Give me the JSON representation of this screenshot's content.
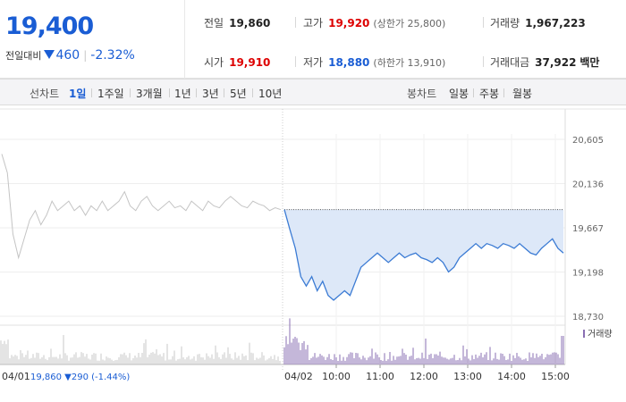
{
  "summary": {
    "price": "19,400",
    "change_label": "전일대비",
    "change_amount": "460",
    "change_pct": "-2.32%",
    "prev_close": {
      "label": "전일",
      "value": "19,860"
    },
    "high": {
      "label": "고가",
      "value": "19,920",
      "sub": "(상한가 25,800)"
    },
    "volume": {
      "label": "거래량",
      "value": "1,967,223"
    },
    "open": {
      "label": "시가",
      "value": "19,910"
    },
    "low": {
      "label": "저가",
      "value": "18,880",
      "sub": "(하한가 13,910)"
    },
    "turnover": {
      "label": "거래대금",
      "value": "37,922",
      "unit": "백만"
    }
  },
  "tabs": {
    "line_label": "선차트",
    "line_tabs": [
      "1일",
      "1주일",
      "3개월",
      "1년",
      "3년",
      "5년",
      "10년"
    ],
    "line_active": 0,
    "candle_label": "봉차트",
    "candle_tabs": [
      "일봉",
      "주봉",
      "월봉"
    ]
  },
  "colors": {
    "up": "#dd0000",
    "down": "#1a5dd4",
    "volume": "#8a6fb3",
    "prev_day": "#c4c4c4",
    "fill": "#dde8f8"
  },
  "chart_data": {
    "type": "line",
    "y_ticks": [
      "20,605",
      "20,136",
      "19,667",
      "19,198",
      "18,730"
    ],
    "ylim": [
      18730,
      20605
    ],
    "reference_line": 19860,
    "volume_label": "거래량",
    "prev_day": {
      "date": "04/01",
      "legend": "19,860 ▼290 (-1.44%)",
      "values": [
        20450,
        20250,
        19600,
        19350,
        19550,
        19750,
        19850,
        19700,
        19800,
        19950,
        19850,
        19900,
        19950,
        19850,
        19900,
        19800,
        19900,
        19850,
        19950,
        19850,
        19900,
        19950,
        20050,
        19900,
        19850,
        19950,
        20000,
        19900,
        19850,
        19900,
        19950,
        19880,
        19900,
        19850,
        19950,
        19900,
        19850,
        19950,
        19900,
        19880,
        19950,
        20000,
        19950,
        19900,
        19880,
        19950,
        19920,
        19900,
        19850,
        19880,
        19860
      ]
    },
    "today": {
      "date": "04/02",
      "x_labels": [
        "10:00",
        "11:00",
        "12:00",
        "13:00",
        "14:00",
        "15:00"
      ],
      "values": [
        19860,
        19650,
        19450,
        19150,
        19050,
        19150,
        19000,
        19100,
        18950,
        18900,
        18950,
        19000,
        18950,
        19100,
        19250,
        19300,
        19350,
        19400,
        19350,
        19300,
        19350,
        19400,
        19350,
        19380,
        19400,
        19350,
        19330,
        19300,
        19350,
        19300,
        19200,
        19250,
        19350,
        19400,
        19450,
        19500,
        19450,
        19500,
        19480,
        19450,
        19500,
        19480,
        19450,
        19500,
        19450,
        19400,
        19380,
        19450,
        19500,
        19550,
        19450,
        19400
      ]
    }
  }
}
